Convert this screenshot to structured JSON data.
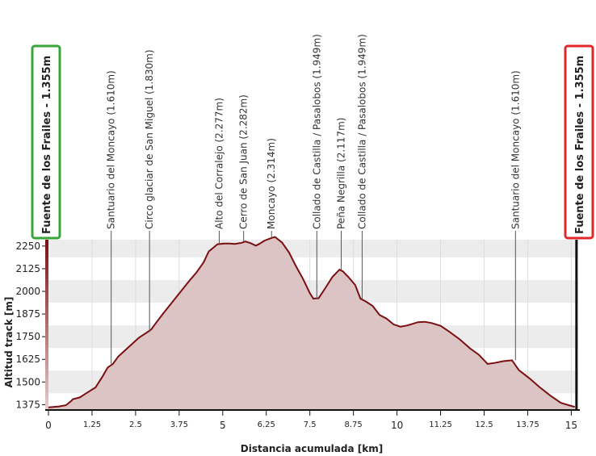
{
  "chart_data": {
    "type": "area",
    "xlabel": "Distancia acumulada [km]",
    "ylabel": "Altitud track [m]",
    "xlim": [
      0,
      15.2
    ],
    "ylim": [
      1350,
      2285
    ],
    "x_ticks": [
      {
        "value": 0,
        "label": "0",
        "major": true
      },
      {
        "value": 1.25,
        "label": "1.25",
        "major": false
      },
      {
        "value": 2.5,
        "label": "2.5",
        "major": false
      },
      {
        "value": 3.75,
        "label": "3.75",
        "major": false
      },
      {
        "value": 5,
        "label": "5",
        "major": true
      },
      {
        "value": 6.25,
        "label": "6.25",
        "major": false
      },
      {
        "value": 7.5,
        "label": "7.5",
        "major": false
      },
      {
        "value": 8.75,
        "label": "8.75",
        "major": false
      },
      {
        "value": 10,
        "label": "10",
        "major": true
      },
      {
        "value": 11.25,
        "label": "11.25",
        "major": false
      },
      {
        "value": 12.5,
        "label": "12.5",
        "major": false
      },
      {
        "value": 13.75,
        "label": "13.75",
        "major": false
      },
      {
        "value": 15,
        "label": "15",
        "major": true
      }
    ],
    "y_ticks": [
      {
        "value": 1375,
        "label": "1375"
      },
      {
        "value": 1500,
        "label": "1500"
      },
      {
        "value": 1625,
        "label": "1625"
      },
      {
        "value": 1750,
        "label": "1750"
      },
      {
        "value": 1875,
        "label": "1875"
      },
      {
        "value": 2000,
        "label": "2000"
      },
      {
        "value": 2125,
        "label": "2125"
      },
      {
        "value": 2250,
        "label": "2250"
      }
    ],
    "series": [
      {
        "x": [
          0,
          0.3,
          0.5,
          0.65,
          0.7,
          0.9,
          1.1,
          1.35,
          1.55,
          1.7,
          1.85,
          2.0,
          2.2,
          2.4,
          2.6,
          2.8,
          2.95,
          3.1,
          3.3,
          3.55,
          3.8,
          4.05,
          4.25,
          4.45,
          4.6,
          4.85,
          5.05,
          5.2,
          5.35,
          5.55,
          5.65,
          5.8,
          5.95,
          6.05,
          6.2,
          6.4,
          6.5,
          6.7,
          6.9,
          7.1,
          7.3,
          7.5,
          7.6,
          7.75,
          7.95,
          8.15,
          8.35,
          8.45,
          8.6,
          8.8,
          8.95,
          9.1,
          9.3,
          9.5,
          9.7,
          9.9,
          10.1,
          10.3,
          10.6,
          10.8,
          11.0,
          11.25,
          11.5,
          11.8,
          12.1,
          12.35,
          12.6,
          12.8,
          13.05,
          13.3,
          13.5,
          13.8,
          14.1,
          14.4,
          14.7,
          15.0,
          15.1
        ],
        "y": [
          1360,
          1365,
          1372,
          1395,
          1405,
          1415,
          1440,
          1470,
          1530,
          1580,
          1600,
          1640,
          1675,
          1710,
          1745,
          1770,
          1790,
          1830,
          1880,
          1940,
          2000,
          2060,
          2105,
          2160,
          2220,
          2260,
          2264,
          2264,
          2262,
          2268,
          2275,
          2266,
          2252,
          2262,
          2280,
          2295,
          2300,
          2270,
          2215,
          2140,
          2070,
          1990,
          1960,
          1962,
          2020,
          2080,
          2120,
          2110,
          2080,
          2035,
          1960,
          1945,
          1920,
          1870,
          1850,
          1818,
          1805,
          1812,
          1830,
          1832,
          1825,
          1810,
          1778,
          1735,
          1685,
          1650,
          1600,
          1605,
          1615,
          1620,
          1565,
          1520,
          1470,
          1425,
          1385,
          1368,
          1363
        ]
      }
    ],
    "waypoints": [
      {
        "x": 1.8,
        "y": 1600,
        "label": "Santuario del Moncayo (1.610m)"
      },
      {
        "x": 2.9,
        "y": 1775,
        "label": "Circo glaciar de San Miguel (1.830m)"
      },
      {
        "x": 4.9,
        "y": 2262,
        "label": "Alto del Corralejo (2.277m)"
      },
      {
        "x": 5.6,
        "y": 2275,
        "label": "Cerro de San Juan (2.282m)"
      },
      {
        "x": 6.4,
        "y": 2300,
        "label": "Moncayo (2.314m)"
      },
      {
        "x": 7.7,
        "y": 1960,
        "label": "Collado de Castilla / Pasalobos (1.949m)"
      },
      {
        "x": 8.4,
        "y": 2120,
        "label": "Peña Negrilla (2.117m)"
      },
      {
        "x": 9.0,
        "y": 1958,
        "label": "Collado de Castilla / Pasalobos (1.949m)"
      },
      {
        "x": 13.4,
        "y": 1620,
        "label": "Santuario del Moncayo (1.610m)"
      }
    ],
    "start_label": "Fuente de los Frailes - 1.355m",
    "end_label": "Fuente de los Frailes - 1.355m",
    "grid": true
  },
  "colors": {
    "line": "#7a0f12",
    "fill": "#dcc4c4",
    "band": "#ececec",
    "start_box": "#38a538",
    "end_box": "#e0282a",
    "axis_bar_top": "#7a0f12",
    "axis_bar_bottom": "#e6cccc"
  }
}
